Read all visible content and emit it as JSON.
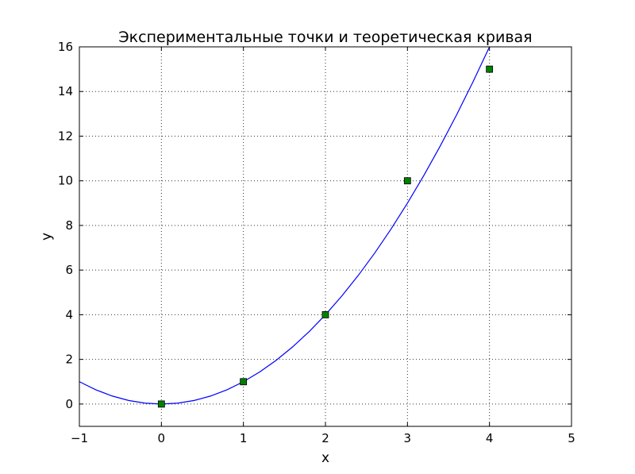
{
  "chart_data": {
    "type": "line",
    "title": "Экспериментальные точки и теоретическая кривая",
    "xlabel": "x",
    "ylabel": "y",
    "xlim": [
      -1,
      5
    ],
    "ylim": [
      -1,
      16
    ],
    "xticks": [
      -1,
      0,
      1,
      2,
      3,
      4,
      5
    ],
    "xtick_labels": [
      "−1",
      "0",
      "1",
      "2",
      "3",
      "4",
      "5"
    ],
    "yticks": [
      0,
      2,
      4,
      6,
      8,
      10,
      12,
      14,
      16
    ],
    "ytick_labels": [
      "0",
      "2",
      "4",
      "6",
      "8",
      "10",
      "12",
      "14",
      "16"
    ],
    "grid": true,
    "series": [
      {
        "kind": "curve",
        "function": "y = x^2",
        "color": "#0000ff",
        "x": [
          -1,
          -0.8,
          -0.6,
          -0.4,
          -0.2,
          0,
          0.2,
          0.4,
          0.6,
          0.8,
          1,
          1.2,
          1.4,
          1.6,
          1.8,
          2,
          2.2,
          2.4,
          2.6,
          2.8,
          3,
          3.2,
          3.4,
          3.6,
          3.8,
          4
        ],
        "y": [
          1,
          0.64,
          0.36,
          0.16,
          0.04,
          0,
          0.04,
          0.16,
          0.36,
          0.64,
          1,
          1.44,
          1.96,
          2.56,
          3.24,
          4,
          4.84,
          5.76,
          6.76,
          7.84,
          9,
          10.24,
          11.56,
          12.96,
          14.44,
          16
        ]
      },
      {
        "kind": "points",
        "marker": "square",
        "color": "#008000",
        "x": [
          0,
          1,
          2,
          3,
          4
        ],
        "y": [
          0,
          1,
          4,
          10,
          15
        ]
      }
    ]
  }
}
